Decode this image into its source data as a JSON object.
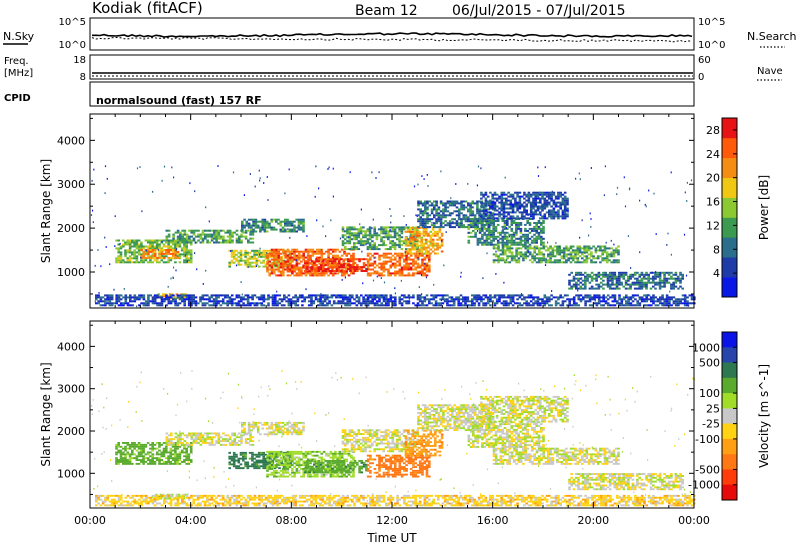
{
  "header": {
    "station": "Kodiak (fitACF)",
    "beam": "Beam 12",
    "date_range": "06/Jul/2015 - 07/Jul/2015"
  },
  "strips": {
    "nsky_label": "N.Sky",
    "nsearch_label": "N.Search",
    "freq_label_1": "Freq.",
    "freq_label_2": "[MHz]",
    "nave_label": "Nave",
    "cpid_label": "CPID",
    "cpid_text": "normalsound (fast) 157 RF",
    "noise_ticks_left": [
      "10^5",
      "10^0"
    ],
    "noise_ticks_right": [
      "10^5",
      "10^0"
    ],
    "freq_ticks": [
      "18",
      "8"
    ],
    "nave_ticks": [
      "60",
      "0"
    ]
  },
  "colors": {
    "power": [
      "#0a18e6",
      "#1e3ca8",
      "#2a6e8c",
      "#3c9a50",
      "#8cc832",
      "#f0c814",
      "#f58c14",
      "#ff5a0a",
      "#e61414"
    ],
    "velocity": [
      "#0a14e6",
      "#2846aa",
      "#2d7850",
      "#5aaa2d",
      "#a0dc28",
      "#c8c8c8",
      "#ffd214",
      "#ffa014",
      "#ff7814",
      "#ff3c0a",
      "#e60a0a"
    ]
  },
  "chart_data": [
    {
      "type": "heatmap",
      "name": "Power",
      "ylabel": "Slant Range [km]",
      "ylim": [
        180,
        4600
      ],
      "yticks": [
        1000,
        2000,
        3000,
        4000
      ],
      "xlim": [
        0,
        24
      ],
      "colorbar_label": "Power [dB]",
      "colorbar_ticks": [
        4,
        8,
        12,
        16,
        20,
        24,
        28
      ],
      "colorbar_range": [
        0,
        30
      ],
      "regions": [
        {
          "t": [
            1.0,
            4.0
          ],
          "r": [
            1200,
            1700
          ],
          "v": 14
        },
        {
          "t": [
            2.0,
            3.5
          ],
          "r": [
            1300,
            1500
          ],
          "v": 22
        },
        {
          "t": [
            3.0,
            6.5
          ],
          "r": [
            1650,
            1950
          ],
          "v": 12
        },
        {
          "t": [
            5.5,
            8.0
          ],
          "r": [
            1100,
            1500
          ],
          "v": 16
        },
        {
          "t": [
            6.0,
            8.5
          ],
          "r": [
            1900,
            2200
          ],
          "v": 10
        },
        {
          "t": [
            7.0,
            10.5
          ],
          "r": [
            900,
            1500
          ],
          "v": 24
        },
        {
          "t": [
            8.5,
            11.0
          ],
          "r": [
            1000,
            1300
          ],
          "v": 27
        },
        {
          "t": [
            10.0,
            13.0
          ],
          "r": [
            1500,
            2000
          ],
          "v": 12
        },
        {
          "t": [
            11.0,
            13.5
          ],
          "r": [
            900,
            1400
          ],
          "v": 24
        },
        {
          "t": [
            12.5,
            14.0
          ],
          "r": [
            1400,
            2000
          ],
          "v": 20
        },
        {
          "t": [
            13.0,
            16.0
          ],
          "r": [
            2000,
            2600
          ],
          "v": 8
        },
        {
          "t": [
            15.0,
            18.0
          ],
          "r": [
            1600,
            2200
          ],
          "v": 10
        },
        {
          "t": [
            15.5,
            19.0
          ],
          "r": [
            2200,
            2800
          ],
          "v": 6
        },
        {
          "t": [
            16.0,
            21.0
          ],
          "r": [
            1200,
            1600
          ],
          "v": 12
        },
        {
          "t": [
            19.0,
            23.5
          ],
          "r": [
            600,
            1000
          ],
          "v": 8
        },
        {
          "t": [
            2.5,
            3.8
          ],
          "r": [
            380,
            480
          ],
          "v": 18
        },
        {
          "t": [
            0.2,
            24.0
          ],
          "r": [
            220,
            450
          ],
          "v": 5
        }
      ]
    },
    {
      "type": "heatmap",
      "name": "Velocity",
      "ylabel": "Slant Range [km]",
      "xlabel": "Time UT",
      "ylim": [
        180,
        4600
      ],
      "yticks": [
        1000,
        2000,
        3000,
        4000
      ],
      "xlim": [
        0,
        24
      ],
      "xticks": [
        "00:00",
        "04:00",
        "08:00",
        "12:00",
        "16:00",
        "20:00",
        "00:00"
      ],
      "colorbar_label": "Velocity [m s^-1]",
      "colorbar_ticks": [
        "1000",
        "500",
        "100",
        "25",
        "-25",
        "-100",
        "-500",
        "-1000"
      ],
      "regions": [
        {
          "t": [
            1.0,
            4.0
          ],
          "r": [
            1200,
            1700
          ],
          "v": 150
        },
        {
          "t": [
            3.0,
            6.5
          ],
          "r": [
            1650,
            1950
          ],
          "v": 0
        },
        {
          "t": [
            5.5,
            8.0
          ],
          "r": [
            1100,
            1500
          ],
          "v": 300
        },
        {
          "t": [
            6.0,
            8.5
          ],
          "r": [
            1900,
            2200
          ],
          "v": 0
        },
        {
          "t": [
            7.0,
            10.5
          ],
          "r": [
            900,
            1500
          ],
          "v": 80
        },
        {
          "t": [
            8.5,
            11.0
          ],
          "r": [
            1000,
            1300
          ],
          "v": 200
        },
        {
          "t": [
            10.0,
            13.0
          ],
          "r": [
            1500,
            2000
          ],
          "v": 0
        },
        {
          "t": [
            11.0,
            13.5
          ],
          "r": [
            900,
            1400
          ],
          "v": -300
        },
        {
          "t": [
            12.5,
            14.0
          ],
          "r": [
            1400,
            2000
          ],
          "v": -200
        },
        {
          "t": [
            13.0,
            16.0
          ],
          "r": [
            2000,
            2600
          ],
          "v": 0
        },
        {
          "t": [
            15.0,
            18.0
          ],
          "r": [
            1600,
            2200
          ],
          "v": 0
        },
        {
          "t": [
            15.5,
            19.0
          ],
          "r": [
            2200,
            2800
          ],
          "v": 0
        },
        {
          "t": [
            16.0,
            21.0
          ],
          "r": [
            1200,
            1600
          ],
          "v": 0
        },
        {
          "t": [
            19.0,
            23.5
          ],
          "r": [
            600,
            1000
          ],
          "v": 0
        },
        {
          "t": [
            2.5,
            3.8
          ],
          "r": [
            380,
            480
          ],
          "v": 60
        },
        {
          "t": [
            0.2,
            24.0
          ],
          "r": [
            220,
            450
          ],
          "v": -60
        }
      ]
    }
  ]
}
